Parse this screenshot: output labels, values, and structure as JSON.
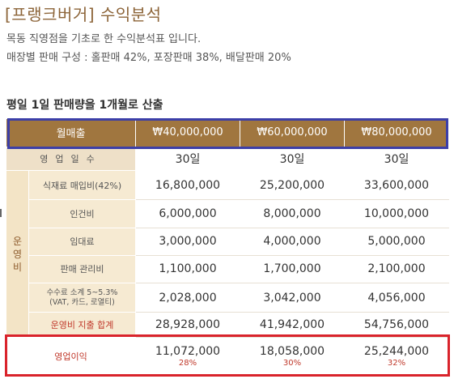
{
  "header": {
    "title": "[프랭크버거] 수익분석",
    "line1": "목동 직영점을 기초로 한 수익분석표 입니다.",
    "line2": "매장별 판매 구성 : 홀판매 42%, 포장판매 38%, 배달판매 20%"
  },
  "section_title": "평일 1일 판매량을 1개월로 산출",
  "table": {
    "monthly_sales_label": "월매출",
    "monthly_sales": [
      "₩40,000,000",
      "₩60,000,000",
      "₩80,000,000"
    ],
    "days_label": "영업일수",
    "days": [
      "30일",
      "30일",
      "30일"
    ],
    "operating_label": "운영비",
    "rows": [
      {
        "label": "식재료 매입비(42%)",
        "values": [
          "16,800,000",
          "25,200,000",
          "33,600,000"
        ]
      },
      {
        "label": "인건비",
        "values": [
          "6,000,000",
          "8,000,000",
          "10,000,000"
        ]
      },
      {
        "label": "임대료",
        "values": [
          "3,000,000",
          "4,000,000",
          "5,000,000"
        ]
      },
      {
        "label": "판매 관리비",
        "values": [
          "1,100,000",
          "1,700,000",
          "2,100,000"
        ]
      },
      {
        "label_line1": "수수료 소계 5~5.3%",
        "label_line2": "(VAT, 카드, 로열티)",
        "values": [
          "2,028,000",
          "3,042,000",
          "4,056,000"
        ]
      },
      {
        "label": "운영비 지출 합계",
        "values": [
          "28,928,000",
          "41,942,000",
          "54,756,000"
        ]
      }
    ],
    "profit_label": "영업이익",
    "profit": [
      {
        "value": "11,072,000",
        "pct": "28%"
      },
      {
        "value": "18,058,000",
        "pct": "30%"
      },
      {
        "value": "25,244,000",
        "pct": "32%"
      }
    ]
  }
}
